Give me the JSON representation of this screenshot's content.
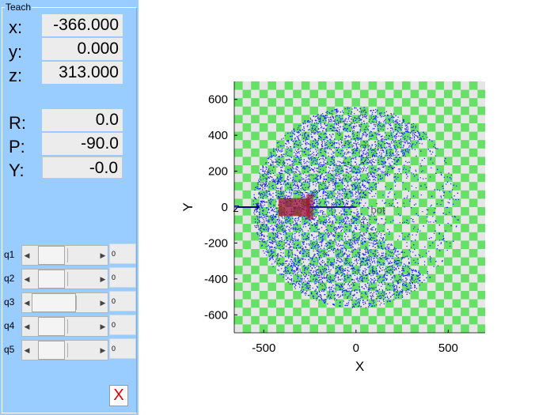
{
  "teach": {
    "group_title": "Teach",
    "position": [
      {
        "label": "x:",
        "value": "-366.000"
      },
      {
        "label": "y:",
        "value": "0.000"
      },
      {
        "label": "z:",
        "value": "313.000"
      }
    ],
    "orientation": [
      {
        "label": "R:",
        "value": "0.0"
      },
      {
        "label": "P:",
        "value": "-90.0"
      },
      {
        "label": "Y:",
        "value": "-0.0"
      }
    ]
  },
  "joints": [
    {
      "label": "q1",
      "value": "0"
    },
    {
      "label": "q2",
      "value": "0"
    },
    {
      "label": "q3",
      "value": "0"
    },
    {
      "label": "q4",
      "value": "0"
    },
    {
      "label": "q5",
      "value": "0"
    }
  ],
  "close_button": {
    "label": "X",
    "color": "#e00000"
  },
  "scene": {
    "robot_label": "bot",
    "z_axis_label": "z",
    "floor_colors": [
      "#66e066",
      "#e6e6e6"
    ],
    "workspace_point_color": "#1a1aff",
    "robot_color": "#a01030"
  },
  "chart_data": {
    "type": "scatter",
    "title": "",
    "xlabel": "X",
    "ylabel": "Y",
    "xlim": [
      -660,
      700
    ],
    "ylim": [
      -700,
      700
    ],
    "xticks": [
      -500,
      0,
      500
    ],
    "yticks": [
      600,
      400,
      200,
      0,
      -200,
      -400,
      -600
    ],
    "workspace": {
      "outer_radius": 560,
      "inner_cut_angle_deg": 47,
      "sample_count": 9000
    }
  }
}
